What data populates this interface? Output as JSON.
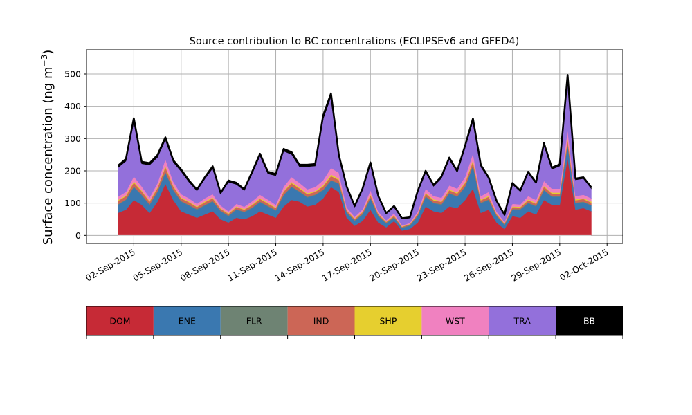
{
  "chart_data": {
    "type": "area",
    "stacked": true,
    "title": "Source contribution to BC concentrations (ECLIPSEv6 and GFED4)",
    "ylabel": "Surface concentration (ng m",
    "ylabel_superscript": "−3",
    "ylabel_close": ")",
    "xlabel": "",
    "ylim": [
      -25,
      575
    ],
    "yticks": [
      0,
      100,
      200,
      300,
      400,
      500
    ],
    "xlim": [
      "2015-08-30",
      "2015-10-03"
    ],
    "xticks": [
      "2015-09-02",
      "2015-09-05",
      "2015-09-08",
      "2015-09-11",
      "2015-09-14",
      "2015-09-17",
      "2015-09-20",
      "2015-09-23",
      "2015-09-26",
      "2015-09-29",
      "2015-10-02"
    ],
    "xtick_labels": [
      "02-Sep-2015",
      "05-Sep-2015",
      "08-Sep-2015",
      "11-Sep-2015",
      "14-Sep-2015",
      "17-Sep-2015",
      "20-Sep-2015",
      "23-Sep-2015",
      "26-Sep-2015",
      "29-Sep-2015",
      "02-Oct-2015"
    ],
    "grid": true,
    "legend_position": "below",
    "x": [
      "2015-09-01 00:00",
      "2015-09-01 12:00",
      "2015-09-02 00:00",
      "2015-09-02 12:00",
      "2015-09-03 00:00",
      "2015-09-03 12:00",
      "2015-09-04 00:00",
      "2015-09-04 12:00",
      "2015-09-05 00:00",
      "2015-09-05 12:00",
      "2015-09-06 00:00",
      "2015-09-06 12:00",
      "2015-09-07 00:00",
      "2015-09-07 12:00",
      "2015-09-08 00:00",
      "2015-09-08 12:00",
      "2015-09-09 00:00",
      "2015-09-09 12:00",
      "2015-09-10 00:00",
      "2015-09-10 12:00",
      "2015-09-11 00:00",
      "2015-09-11 12:00",
      "2015-09-12 00:00",
      "2015-09-12 12:00",
      "2015-09-13 00:00",
      "2015-09-13 12:00",
      "2015-09-14 00:00",
      "2015-09-14 12:00",
      "2015-09-15 00:00",
      "2015-09-15 12:00",
      "2015-09-16 00:00",
      "2015-09-16 12:00",
      "2015-09-17 00:00",
      "2015-09-17 12:00",
      "2015-09-18 00:00",
      "2015-09-18 12:00",
      "2015-09-19 00:00",
      "2015-09-19 12:00",
      "2015-09-20 00:00",
      "2015-09-20 12:00",
      "2015-09-21 00:00",
      "2015-09-21 12:00",
      "2015-09-22 00:00",
      "2015-09-22 12:00",
      "2015-09-23 00:00",
      "2015-09-23 12:00",
      "2015-09-24 00:00",
      "2015-09-24 12:00",
      "2015-09-25 00:00",
      "2015-09-25 12:00",
      "2015-09-26 00:00",
      "2015-09-26 12:00",
      "2015-09-27 00:00",
      "2015-09-27 12:00",
      "2015-09-28 00:00",
      "2015-09-28 12:00",
      "2015-09-29 00:00",
      "2015-09-29 12:00",
      "2015-09-30 00:00",
      "2015-09-30 12:00",
      "2015-10-01 00:00"
    ],
    "series": [
      {
        "name": "DOM",
        "color": "#c62a36",
        "values": [
          70,
          80,
          110,
          95,
          70,
          105,
          160,
          110,
          75,
          65,
          55,
          65,
          75,
          50,
          40,
          55,
          50,
          60,
          75,
          65,
          55,
          90,
          110,
          105,
          90,
          95,
          115,
          150,
          135,
          55,
          30,
          45,
          80,
          40,
          25,
          45,
          15,
          20,
          40,
          90,
          75,
          70,
          90,
          85,
          110,
          145,
          70,
          80,
          40,
          20,
          60,
          55,
          75,
          65,
          110,
          95,
          95,
          240,
          80,
          85,
          75
        ]
      },
      {
        "name": "ENE",
        "color": "#3a78b0",
        "values": [
          25,
          30,
          40,
          30,
          25,
          30,
          35,
          30,
          30,
          28,
          25,
          28,
          30,
          25,
          20,
          25,
          22,
          25,
          28,
          25,
          22,
          35,
          40,
          30,
          28,
          30,
          25,
          20,
          25,
          15,
          15,
          20,
          35,
          20,
          12,
          10,
          8,
          10,
          20,
          30,
          25,
          25,
          40,
          35,
          40,
          70,
          30,
          30,
          20,
          12,
          20,
          25,
          25,
          25,
          30,
          25,
          25,
          40,
          20,
          18,
          18
        ]
      },
      {
        "name": "FLR",
        "color": "#6e8373",
        "values": [
          2,
          2,
          2,
          2,
          2,
          2,
          2,
          2,
          2,
          2,
          2,
          2,
          2,
          2,
          2,
          2,
          2,
          2,
          2,
          2,
          2,
          2,
          2,
          2,
          2,
          2,
          2,
          2,
          2,
          2,
          2,
          2,
          2,
          2,
          2,
          2,
          2,
          2,
          2,
          2,
          2,
          2,
          2,
          2,
          2,
          2,
          2,
          2,
          2,
          2,
          2,
          2,
          2,
          2,
          2,
          2,
          2,
          2,
          2,
          2,
          2
        ]
      },
      {
        "name": "IND",
        "color": "#cc6656",
        "values": [
          10,
          10,
          12,
          10,
          8,
          10,
          15,
          10,
          8,
          8,
          6,
          8,
          8,
          6,
          5,
          6,
          6,
          7,
          8,
          7,
          6,
          9,
          10,
          9,
          8,
          8,
          10,
          12,
          10,
          5,
          4,
          5,
          8,
          4,
          3,
          4,
          2,
          3,
          4,
          8,
          7,
          7,
          8,
          8,
          10,
          12,
          7,
          8,
          4,
          3,
          6,
          5,
          7,
          6,
          9,
          8,
          8,
          15,
          7,
          8,
          7
        ]
      },
      {
        "name": "SHP",
        "color": "#e6cf2f",
        "values": [
          3,
          3,
          4,
          3,
          3,
          3,
          4,
          3,
          3,
          3,
          2,
          3,
          3,
          2,
          2,
          2,
          2,
          3,
          3,
          3,
          2,
          3,
          4,
          3,
          3,
          3,
          4,
          5,
          4,
          2,
          2,
          2,
          3,
          2,
          1,
          2,
          1,
          1,
          2,
          3,
          3,
          3,
          3,
          3,
          4,
          5,
          3,
          3,
          2,
          1,
          2,
          2,
          3,
          3,
          3,
          3,
          3,
          5,
          3,
          3,
          3
        ]
      },
      {
        "name": "WST",
        "color": "#f081c0",
        "values": [
          10,
          10,
          15,
          12,
          10,
          12,
          20,
          12,
          10,
          9,
          8,
          9,
          10,
          8,
          6,
          8,
          7,
          9,
          10,
          9,
          8,
          12,
          15,
          14,
          12,
          12,
          15,
          20,
          18,
          8,
          5,
          7,
          12,
          6,
          4,
          6,
          3,
          3,
          6,
          12,
          10,
          10,
          12,
          12,
          15,
          20,
          10,
          12,
          6,
          4,
          8,
          7,
          10,
          9,
          15,
          12,
          12,
          25,
          10,
          10,
          10
        ]
      },
      {
        "name": "TRA",
        "color": "#9370db",
        "values": [
          90,
          95,
          170,
          70,
          100,
          80,
          60,
          60,
          70,
          50,
          40,
          60,
          80,
          35,
          90,
          60,
          50,
          85,
          120,
          80,
          90,
          110,
          70,
          50,
          70,
          65,
          190,
          220,
          50,
          60,
          30,
          60,
          80,
          45,
          20,
          20,
          20,
          15,
          60,
          50,
          30,
          60,
          80,
          50,
          90,
          100,
          90,
          40,
          30,
          20,
          60,
          40,
          70,
          50,
          110,
          60,
          70,
          160,
          50,
          50,
          30
        ]
      },
      {
        "name": "BB",
        "color": "#000000",
        "values": [
          6,
          7,
          10,
          6,
          6,
          7,
          8,
          6,
          6,
          5,
          4,
          5,
          6,
          4,
          5,
          5,
          4,
          6,
          7,
          6,
          5,
          7,
          7,
          6,
          6,
          6,
          10,
          11,
          5,
          4,
          3,
          4,
          6,
          3,
          2,
          2,
          2,
          2,
          4,
          5,
          4,
          5,
          6,
          5,
          7,
          8,
          6,
          4,
          3,
          2,
          4,
          3,
          5,
          4,
          7,
          5,
          5,
          10,
          4,
          4,
          4
        ]
      }
    ]
  }
}
